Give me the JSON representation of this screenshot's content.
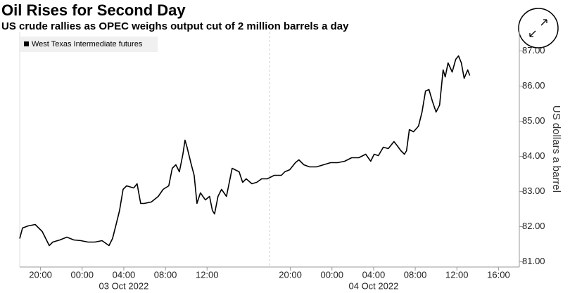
{
  "chart_data": {
    "type": "line",
    "title": "Oil Rises for Second Day",
    "subtitle": "US crude rallies as OPEC weighs output cut of 2 million barrels a day",
    "y_axis_label": "US dollars a barrel",
    "x": [
      0,
      0.27,
      0.81,
      1.49,
      2.16,
      2.5,
      2.84,
      3.18,
      3.86,
      4.53,
      5.2,
      5.88,
      6.55,
      7.23,
      7.91,
      8.58,
      8.92,
      9.26,
      9.59,
      9.93,
      10.27,
      10.95,
      11.28,
      11.62,
      11.96,
      12.64,
      13.31,
      13.78,
      14.32,
      14.66,
      15,
      15.34,
      15.68,
      15.88,
      16.08,
      16.49,
      16.76,
      17.03,
      17.36,
      17.84,
      18.24,
      18.51,
      18.72,
      19.05,
      19.39,
      19.86,
      20.41,
      21.08,
      21.42,
      21.76,
      22.3,
      22.77,
      23.24,
      23.78,
      24.46,
      25.14,
      25.47,
      25.95,
      26.49,
      26.82,
      27.3,
      27.84,
      28.51,
      29.19,
      29.86,
      30.54,
      31.22,
      31.89,
      32.57,
      33.24,
      33.72,
      34.05,
      34.46,
      34.93,
      35.41,
      35.95,
      36.28,
      36.62,
      36.96,
      37.16,
      37.43,
      37.84,
      38.31,
      38.65,
      38.99,
      39.32,
      39.66,
      40,
      40.34,
      40.68,
      40.88,
      41.15,
      41.55,
      41.89,
      42.16,
      42.43,
      42.7,
      43.04,
      43.24
    ],
    "series": [
      {
        "name": "West Texas Intermediate futures",
        "color": "#000000",
        "values": [
          81.66,
          81.96,
          82.02,
          82.06,
          81.86,
          81.66,
          81.46,
          81.56,
          81.62,
          81.7,
          81.62,
          81.6,
          81.56,
          81.56,
          81.6,
          81.46,
          81.66,
          82.06,
          82.46,
          83.06,
          83.16,
          83.1,
          83.22,
          82.66,
          82.66,
          82.7,
          82.86,
          83.06,
          83.16,
          83.66,
          83.76,
          83.56,
          84.06,
          84.46,
          84.26,
          83.76,
          83.46,
          82.66,
          82.96,
          82.76,
          82.86,
          82.46,
          82.36,
          82.86,
          83.06,
          82.86,
          83.66,
          83.56,
          83.26,
          83.36,
          83.22,
          83.26,
          83.36,
          83.36,
          83.46,
          83.46,
          83.56,
          83.62,
          83.82,
          83.9,
          83.76,
          83.7,
          83.7,
          83.76,
          83.82,
          83.82,
          83.86,
          83.96,
          83.96,
          84.06,
          83.86,
          84.06,
          84.02,
          84.26,
          84.22,
          84.42,
          84.3,
          84.16,
          84.06,
          84.16,
          84.76,
          84.7,
          84.86,
          85.26,
          85.86,
          85.9,
          85.56,
          85.26,
          85.46,
          86.46,
          86.26,
          86.66,
          86.4,
          86.76,
          86.86,
          86.66,
          86.22,
          86.46,
          86.3
        ]
      }
    ],
    "xlim": [
      0,
      48
    ],
    "xticks": [
      {
        "value": 2,
        "label": "20:00"
      },
      {
        "value": 6,
        "label": "00:00"
      },
      {
        "value": 10,
        "label": "04:00"
      },
      {
        "value": 14,
        "label": "08:00"
      },
      {
        "value": 18,
        "label": "12:00"
      },
      {
        "value": 26,
        "label": "20:00"
      },
      {
        "value": 30,
        "label": "00:00"
      },
      {
        "value": 34,
        "label": "04:00"
      },
      {
        "value": 38,
        "label": "08:00"
      },
      {
        "value": 42,
        "label": "12:00"
      },
      {
        "value": 46,
        "label": "16:00"
      }
    ],
    "date_labels": [
      {
        "value": 10,
        "label": "03 Oct 2022"
      },
      {
        "value": 34,
        "label": "04 Oct 2022"
      }
    ],
    "ylim": [
      80.85,
      87.55
    ],
    "yticks": [
      {
        "value": 81,
        "label": "81.00"
      },
      {
        "value": 82,
        "label": "82.00"
      },
      {
        "value": 83,
        "label": "83.00"
      },
      {
        "value": 84,
        "label": "84.00"
      },
      {
        "value": 85,
        "label": "85.00"
      },
      {
        "value": 86,
        "label": "86.00"
      },
      {
        "value": 87,
        "label": "87.00"
      }
    ],
    "y_axis_side": "right",
    "legend": "top-left"
  }
}
